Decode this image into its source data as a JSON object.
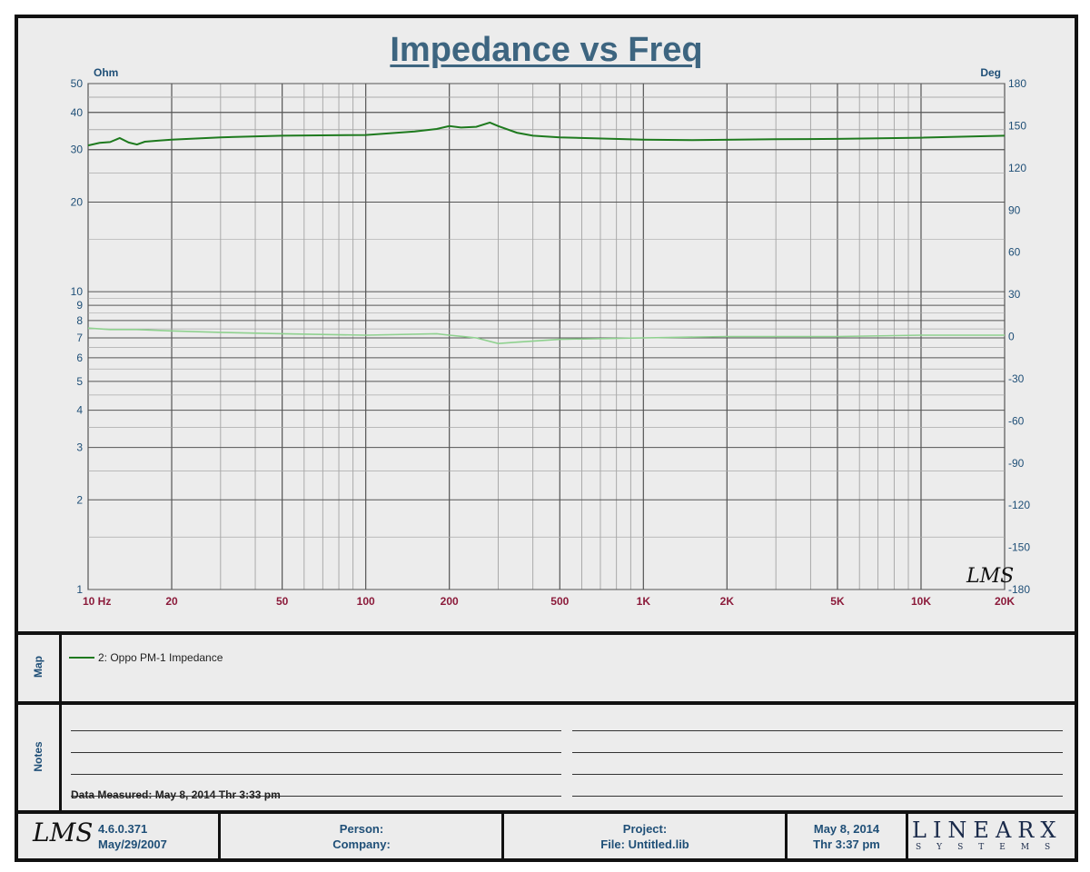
{
  "chart_data": {
    "type": "line",
    "title": "Impedance vs Freq",
    "y_left_unit": "Ohm",
    "y_right_unit": "Deg",
    "x_scale": "log",
    "y_left_scale": "log",
    "xlim": [
      10,
      20000
    ],
    "ylim_left": [
      1,
      50
    ],
    "ylim_right": [
      -180,
      180
    ],
    "x_ticks": [
      10,
      20,
      50,
      100,
      200,
      500,
      1000,
      2000,
      5000,
      10000,
      20000
    ],
    "x_tick_labels": [
      "10  Hz",
      "20",
      "50",
      "100",
      "200",
      "500",
      "1K",
      "2K",
      "5K",
      "10K",
      "20K"
    ],
    "y_left_ticks": [
      1,
      2,
      3,
      4,
      5,
      6,
      7,
      8,
      9,
      10,
      20,
      30,
      40,
      50
    ],
    "y_left_tick_labels": [
      "1",
      "2",
      "3",
      "4",
      "5",
      "6",
      "7",
      "8",
      "9",
      "10",
      "20",
      "30",
      "40",
      "50"
    ],
    "y_right_ticks": [
      -180,
      -150,
      -120,
      -90,
      -60,
      -30,
      0,
      30,
      60,
      90,
      120,
      150,
      180
    ],
    "y_right_tick_labels": [
      "-180",
      "-150",
      "-120",
      "-90",
      "-60",
      "-30",
      "0",
      "30",
      "60",
      "90",
      "120",
      "150",
      "180"
    ],
    "grid": true,
    "series": [
      {
        "name": "2: Oppo PM-1 Impedance",
        "axis": "left",
        "color": "#1e7a1e",
        "x": [
          10,
          11,
          12,
          13,
          14,
          15,
          16,
          18,
          20,
          30,
          50,
          100,
          150,
          180,
          200,
          220,
          250,
          280,
          300,
          350,
          400,
          500,
          1000,
          1500,
          3000,
          5000,
          10000,
          20000
        ],
        "y": [
          31.0,
          31.6,
          31.8,
          32.8,
          31.7,
          31.2,
          31.9,
          32.2,
          32.4,
          33.0,
          33.4,
          33.6,
          34.5,
          35.2,
          36.0,
          35.6,
          35.8,
          37.0,
          36.0,
          34.2,
          33.4,
          33.0,
          32.4,
          32.3,
          32.5,
          32.6,
          32.9,
          33.4
        ]
      },
      {
        "name": "2: Oppo PM-1 Impedance",
        "axis": "right",
        "color": "#8fd18f",
        "x": [
          10,
          12,
          15,
          20,
          30,
          50,
          100,
          180,
          200,
          250,
          300,
          350,
          500,
          1000,
          2000,
          5000,
          10000,
          20000
        ],
        "y": [
          6,
          5,
          5,
          4,
          3,
          2,
          1,
          2,
          1,
          -1,
          -5,
          -4,
          -2,
          -1,
          0,
          0,
          1,
          1
        ]
      }
    ]
  },
  "legend_label": "2: Oppo PM-1 Impedance",
  "map_label": "Map",
  "notes_label": "Notes",
  "data_measured": "Data Measured: May  8, 2014  Thr  3:33 pm",
  "footer": {
    "logo": "LMS",
    "version": "4.6.0.371",
    "version_date": "May/29/2007",
    "person": "Person:",
    "company": "Company:",
    "project": "Project:",
    "file": "File: Untitled.lib",
    "date": "May  8, 2014",
    "time": "Thr  3:37 pm",
    "brand": "LINEARX",
    "brand_sub": "SYSTEMS"
  },
  "colors": {
    "title": "#3d6580",
    "axis_label": "#1f4f77",
    "x_tick": "#8b1a3a",
    "impedance": "#1e7a1e",
    "phase": "#8fd18f"
  }
}
